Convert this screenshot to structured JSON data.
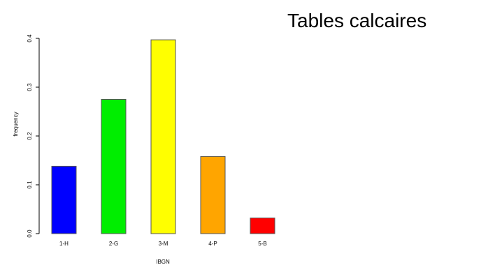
{
  "chart_data": {
    "type": "bar",
    "title": "Tables calcaires",
    "xlabel": "IBGN",
    "ylabel": "frequency",
    "categories": [
      "1-H",
      "2-G",
      "3-M",
      "4-P",
      "5-B"
    ],
    "values": [
      0.138,
      0.275,
      0.397,
      0.158,
      0.032
    ],
    "colors": [
      "#0000ff",
      "#00ee00",
      "#ffff00",
      "#ffa500",
      "#ff0000"
    ],
    "ylim": [
      0,
      0.4
    ],
    "yticks": [
      "0.0",
      "0.1",
      "0.2",
      "0.3",
      "0.4"
    ],
    "grid": false,
    "legend": "none"
  }
}
